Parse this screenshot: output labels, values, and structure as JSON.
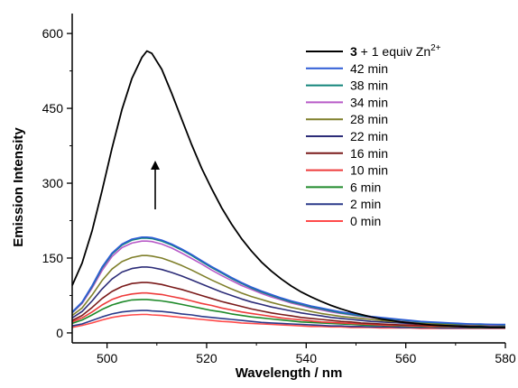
{
  "chart_data": {
    "type": "line",
    "title": "",
    "xlabel": "Wavelength / nm",
    "ylabel": "Emission Intensity",
    "xlim": [
      493,
      580
    ],
    "ylim": [
      -20,
      640
    ],
    "xticks": [
      500,
      520,
      540,
      560,
      580
    ],
    "xtick_labels": [
      "500",
      "520",
      "540",
      "560",
      "580"
    ],
    "yticks": [
      0,
      150,
      300,
      450,
      600
    ],
    "ytick_labels": [
      "0",
      "150",
      "300",
      "450",
      "600"
    ],
    "grid": false,
    "legend_position": "top-right",
    "annotation": "upward arrow indicating increasing intensity over time",
    "x": [
      493,
      495,
      497,
      499,
      501,
      503,
      505,
      507,
      508,
      509,
      511,
      513,
      515,
      517,
      519,
      521,
      523,
      525,
      527,
      529,
      531,
      533,
      535,
      537,
      539,
      541,
      543,
      545,
      547,
      549,
      551,
      553,
      555,
      557,
      559,
      561,
      563,
      565,
      567,
      569,
      571,
      573,
      575,
      577,
      580
    ],
    "series": [
      {
        "name_bold": "3",
        "name_rest": "  + 1 equiv Zn",
        "name_sup": "2+",
        "color": "#000000",
        "values": [
          95,
          140,
          205,
          285,
          370,
          448,
          510,
          552,
          565,
          560,
          528,
          480,
          428,
          377,
          330,
          289,
          251,
          218,
          189,
          164,
          142,
          124,
          108,
          94,
          82,
          72,
          63,
          55,
          48,
          42,
          37,
          32,
          28,
          25,
          22,
          20,
          18,
          16,
          15,
          14,
          13,
          12,
          12,
          11,
          11
        ]
      },
      {
        "name": "42 min",
        "color": "#2e5cd6",
        "values": [
          42,
          62,
          95,
          132,
          160,
          178,
          188,
          192,
          192,
          191,
          186,
          178,
          168,
          157,
          145,
          133,
          122,
          111,
          101,
          92,
          84,
          77,
          70,
          64,
          59,
          54,
          50,
          46,
          42,
          39,
          36,
          33,
          31,
          29,
          27,
          25,
          23,
          22,
          21,
          20,
          19,
          18,
          18,
          17,
          17
        ]
      },
      {
        "name": "38 min",
        "color": "#12857a",
        "values": [
          41,
          61,
          93,
          130,
          158,
          176,
          186,
          190,
          190,
          189,
          184,
          176,
          166,
          155,
          143,
          131,
          120,
          109,
          99,
          90,
          82,
          75,
          68,
          62,
          57,
          52,
          48,
          44,
          40,
          37,
          34,
          32,
          30,
          28,
          26,
          24,
          22,
          21,
          20,
          19,
          18,
          18,
          17,
          17,
          16
        ]
      },
      {
        "name": "34 min",
        "color": "#b85bc8",
        "values": [
          40,
          59,
          90,
          125,
          153,
          171,
          180,
          184,
          184,
          183,
          178,
          170,
          160,
          149,
          138,
          126,
          115,
          105,
          95,
          87,
          79,
          72,
          66,
          60,
          55,
          50,
          46,
          42,
          39,
          36,
          33,
          31,
          29,
          27,
          25,
          23,
          22,
          21,
          20,
          19,
          18,
          17,
          17,
          16,
          16
        ]
      },
      {
        "name": "28 min",
        "color": "#7f7f2a",
        "values": [
          35,
          50,
          76,
          105,
          128,
          143,
          151,
          155,
          155,
          154,
          150,
          143,
          135,
          126,
          116,
          106,
          97,
          88,
          80,
          73,
          67,
          61,
          56,
          51,
          47,
          43,
          39,
          36,
          33,
          31,
          29,
          27,
          25,
          23,
          22,
          21,
          20,
          19,
          18,
          17,
          17,
          16,
          16,
          15,
          15
        ]
      },
      {
        "name": "22 min",
        "color": "#2c2c78",
        "values": [
          30,
          43,
          64,
          88,
          108,
          122,
          129,
          132,
          132,
          131,
          127,
          121,
          114,
          106,
          98,
          90,
          82,
          75,
          68,
          62,
          57,
          52,
          48,
          44,
          40,
          37,
          34,
          31,
          29,
          27,
          25,
          23,
          22,
          21,
          20,
          19,
          18,
          17,
          16,
          16,
          15,
          15,
          14,
          14,
          14
        ]
      },
      {
        "name": "16 min",
        "color": "#7a1a1a",
        "values": [
          25,
          35,
          51,
          69,
          83,
          93,
          99,
          101,
          101,
          100,
          97,
          92,
          87,
          81,
          75,
          69,
          63,
          58,
          53,
          48,
          44,
          40,
          37,
          34,
          31,
          29,
          27,
          25,
          23,
          22,
          20,
          19,
          18,
          17,
          16,
          16,
          15,
          15,
          14,
          14,
          13,
          13,
          13,
          13,
          12
        ]
      },
      {
        "name": "10 min",
        "color": "#ee3b3b",
        "values": [
          22,
          30,
          42,
          56,
          67,
          74,
          78,
          80,
          80,
          79,
          77,
          73,
          69,
          64,
          59,
          55,
          50,
          46,
          42,
          39,
          36,
          33,
          30,
          28,
          26,
          24,
          22,
          21,
          20,
          19,
          18,
          17,
          16,
          15,
          15,
          14,
          14,
          13,
          13,
          13,
          12,
          12,
          12,
          12,
          12
        ]
      },
      {
        "name": "6 min",
        "color": "#1f8a2a",
        "values": [
          19,
          26,
          36,
          47,
          56,
          62,
          66,
          67,
          67,
          66,
          64,
          61,
          57,
          53,
          49,
          45,
          42,
          38,
          35,
          32,
          30,
          28,
          26,
          24,
          22,
          21,
          20,
          19,
          18,
          17,
          16,
          15,
          15,
          14,
          14,
          13,
          13,
          12,
          12,
          12,
          12,
          11,
          11,
          11,
          11
        ]
      },
      {
        "name": "2 min",
        "color": "#2b3a8a",
        "values": [
          14,
          18,
          25,
          32,
          38,
          42,
          44,
          45,
          45,
          44,
          43,
          41,
          38,
          36,
          33,
          31,
          29,
          27,
          25,
          23,
          21,
          20,
          19,
          18,
          17,
          16,
          15,
          14,
          14,
          13,
          13,
          12,
          12,
          12,
          11,
          11,
          11,
          11,
          10,
          10,
          10,
          10,
          10,
          10,
          10
        ]
      },
      {
        "name": "0 min",
        "color": "#ff4a4a",
        "values": [
          11,
          15,
          20,
          26,
          31,
          34,
          36,
          37,
          37,
          36,
          35,
          33,
          31,
          29,
          27,
          25,
          23,
          22,
          20,
          19,
          18,
          17,
          16,
          15,
          14,
          13,
          13,
          12,
          12,
          11,
          11,
          11,
          10,
          10,
          10,
          10,
          9,
          9,
          9,
          9,
          9,
          9,
          9,
          9,
          9
        ]
      }
    ]
  }
}
